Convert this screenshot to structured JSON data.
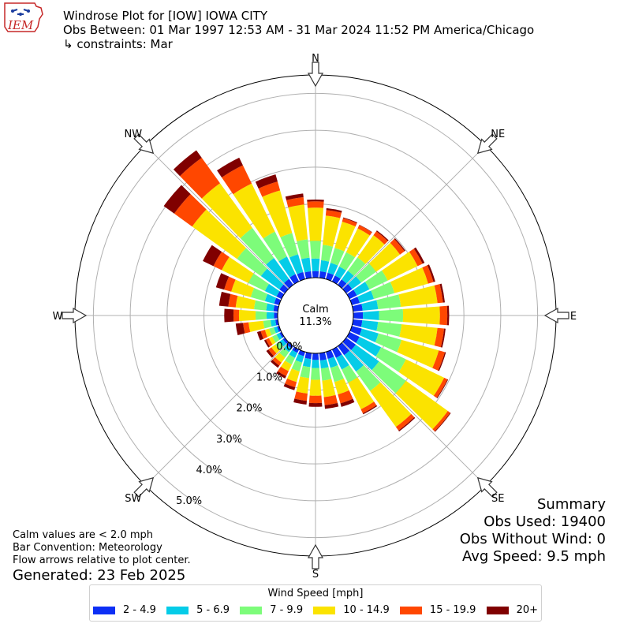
{
  "header": {
    "logo_text": "IEM",
    "title_line1": "Windrose Plot for [IOW] IOWA CITY",
    "title_line2": "Obs Between: 01 Mar 1997 12:53 AM - 31 Mar 2024 11:52 PM America/Chicago",
    "title_line3": "↳ constraints: Mar"
  },
  "summary": {
    "heading": "Summary",
    "obs_used": "Obs Used: 19400",
    "obs_without_wind": "Obs Without Wind: 0",
    "avg_speed": "Avg Speed: 9.5 mph"
  },
  "notes": {
    "calm_note": "Calm values are < 2.0 mph",
    "bar_convention": "Bar Convention: Meteorology",
    "flow_arrows": "Flow arrows relative to plot center.",
    "generated": "Generated: 23 Feb 2025"
  },
  "chart_data": {
    "type": "windrose",
    "calm_label": "Calm",
    "calm_value": "11.3%",
    "radial_unit": "%",
    "radial_ticks": [
      "0.0%",
      "1.0%",
      "2.0%",
      "3.0%",
      "4.0%",
      "5.0%"
    ],
    "radial_max": 5.5,
    "grid": true,
    "compass_labels": [
      "N",
      "NE",
      "E",
      "SE",
      "S",
      "SW",
      "W",
      "NW"
    ],
    "legend_title": "Wind Speed [mph]",
    "legend_position": "bottom-center",
    "speed_bins": [
      "2 - 4.9",
      "5 - 6.9",
      "7 - 9.9",
      "10 - 14.9",
      "15 - 19.9",
      "20+"
    ],
    "colors": [
      "#0d2ff5",
      "#05cce8",
      "#7dfc7a",
      "#fbe300",
      "#ff4700",
      "#800000"
    ],
    "directions": [
      0,
      10,
      20,
      30,
      40,
      50,
      60,
      70,
      80,
      90,
      100,
      110,
      120,
      130,
      140,
      150,
      160,
      170,
      180,
      190,
      200,
      210,
      220,
      230,
      240,
      250,
      260,
      270,
      280,
      290,
      300,
      310,
      320,
      330,
      340,
      350
    ],
    "cumulative_percent": [
      [
        0.18,
        0.52,
        1.0,
        1.9,
        2.07,
        2.12
      ],
      [
        0.18,
        0.48,
        0.9,
        1.7,
        1.85,
        1.9
      ],
      [
        0.18,
        0.46,
        0.88,
        1.62,
        1.72,
        1.74
      ],
      [
        0.18,
        0.45,
        0.88,
        1.6,
        1.7,
        1.71
      ],
      [
        0.18,
        0.47,
        0.92,
        1.66,
        1.79,
        1.82
      ],
      [
        0.2,
        0.5,
        1.0,
        1.8,
        1.95,
        1.98
      ],
      [
        0.22,
        0.6,
        1.15,
        2.05,
        2.2,
        2.26
      ],
      [
        0.22,
        0.62,
        1.2,
        2.15,
        2.3,
        2.35
      ],
      [
        0.26,
        0.68,
        1.3,
        2.3,
        2.45,
        2.5
      ],
      [
        0.26,
        0.7,
        1.35,
        2.35,
        2.55,
        2.6
      ],
      [
        0.25,
        0.68,
        1.32,
        2.3,
        2.48,
        2.52
      ],
      [
        0.28,
        0.75,
        1.4,
        2.45,
        2.62,
        2.65
      ],
      [
        0.3,
        0.95,
        1.7,
        2.85,
        2.95,
        2.97
      ],
      [
        0.32,
        1.1,
        2.0,
        3.4,
        3.48,
        3.5
      ],
      [
        0.3,
        0.85,
        1.5,
        2.7,
        2.82,
        2.85
      ],
      [
        0.25,
        0.6,
        1.0,
        1.8,
        1.92,
        1.95
      ],
      [
        0.2,
        0.45,
        0.85,
        1.2,
        1.45,
        1.55
      ],
      [
        0.2,
        0.42,
        0.75,
        1.2,
        1.42,
        1.52
      ],
      [
        0.18,
        0.4,
        0.72,
        1.15,
        1.35,
        1.45
      ],
      [
        0.16,
        0.38,
        0.68,
        1.1,
        1.3,
        1.4
      ],
      [
        0.12,
        0.3,
        0.55,
        0.85,
        1.0,
        1.08
      ],
      [
        0.1,
        0.25,
        0.45,
        0.65,
        0.8,
        0.87
      ],
      [
        0.08,
        0.2,
        0.38,
        0.55,
        0.65,
        0.72
      ],
      [
        0.07,
        0.18,
        0.32,
        0.45,
        0.55,
        0.62
      ],
      [
        0.06,
        0.15,
        0.28,
        0.38,
        0.47,
        0.52
      ],
      [
        0.06,
        0.15,
        0.28,
        0.4,
        0.52,
        0.62
      ],
      [
        0.07,
        0.2,
        0.4,
        0.8,
        0.95,
        1.15
      ],
      [
        0.1,
        0.3,
        0.6,
        1.05,
        1.2,
        1.45
      ],
      [
        0.12,
        0.32,
        0.65,
        1.15,
        1.35,
        1.6
      ],
      [
        0.14,
        0.4,
        0.8,
        1.35,
        1.55,
        1.78
      ],
      [
        0.15,
        0.5,
        1.0,
        1.8,
        2.05,
        2.37
      ],
      [
        0.18,
        0.8,
        1.6,
        3.1,
        3.7,
        4.05
      ],
      [
        0.2,
        0.9,
        1.9,
        3.4,
        4.25,
        4.5
      ],
      [
        0.22,
        0.75,
        1.5,
        2.95,
        3.5,
        3.73
      ],
      [
        0.2,
        0.7,
        1.3,
        2.5,
        2.75,
        2.95
      ],
      [
        0.18,
        0.55,
        1.05,
        2.0,
        2.2,
        2.3
      ]
    ]
  }
}
